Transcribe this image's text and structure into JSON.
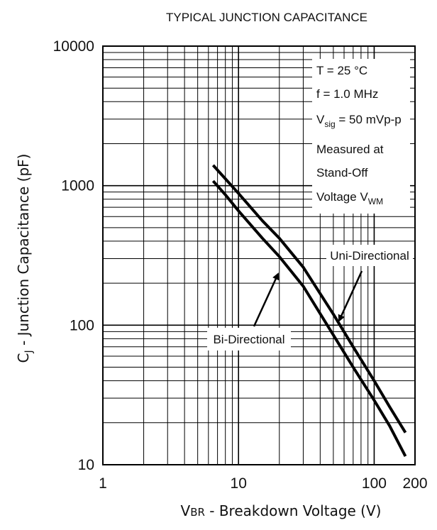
{
  "chart_data": {
    "type": "line",
    "title": "TYPICAL JUNCTION CAPACITANCE",
    "ylabel_main": "C",
    "ylabel_sub": "J",
    "ylabel_rest": " - Junction Capacitance (pF)",
    "xlabel_main": "V",
    "xlabel_sub": "BR",
    "xlabel_rest": " - Breakdown Voltage (V)",
    "x_scale": "log",
    "y_scale": "log",
    "xlim": [
      1,
      200
    ],
    "ylim": [
      10,
      10000
    ],
    "grid": true,
    "x_ticks": [
      {
        "value": 1,
        "label": "1"
      },
      {
        "value": 10,
        "label": "10"
      },
      {
        "value": 100,
        "label": "100"
      },
      {
        "value": 200,
        "label": "200"
      }
    ],
    "y_ticks": [
      {
        "value": 10,
        "label": "10"
      },
      {
        "value": 100,
        "label": "100"
      },
      {
        "value": 1000,
        "label": "1000"
      },
      {
        "value": 10000,
        "label": "10000"
      }
    ],
    "series": [
      {
        "name": "Uni-Directional",
        "x": [
          6.5,
          8,
          10,
          15,
          20,
          30,
          50,
          70,
          100,
          130,
          170
        ],
        "y": [
          1400,
          1120,
          880,
          560,
          420,
          260,
          120,
          70,
          40,
          26,
          17
        ]
      },
      {
        "name": "Bi-Directional",
        "x": [
          6.5,
          8,
          10,
          15,
          20,
          30,
          50,
          70,
          100,
          130,
          170
        ],
        "y": [
          1080,
          860,
          660,
          420,
          310,
          190,
          85,
          50,
          29,
          19,
          11.5
        ]
      }
    ],
    "annotations": {
      "conditions": [
        {
          "main": "T  = 25 °C",
          "sub": ""
        },
        {
          "main": "f = 1.0 MHz",
          "sub": ""
        },
        {
          "main": "V",
          "sub": "sig",
          "rest": " = 50 mVp-p"
        },
        {
          "main": "Measured at",
          "sub": ""
        },
        {
          "main": "Stand-Off",
          "sub": ""
        },
        {
          "main": "Voltage V",
          "sub": "WM",
          "rest": ""
        }
      ],
      "uni_label": "Uni-Directional",
      "bi_label": "Bi-Directional"
    }
  }
}
